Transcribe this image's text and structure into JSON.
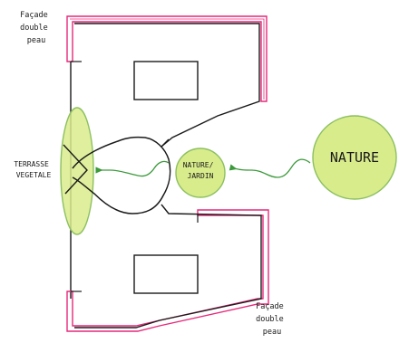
{
  "labels": {
    "facade_top": [
      "Façade",
      "double",
      "peau"
    ],
    "facade_bottom": [
      "Façade",
      "double",
      "peau"
    ],
    "terrasse": [
      "TERRASSE",
      "VEGETALE"
    ],
    "nature_jardin": [
      "NATURE/",
      "JARDIN"
    ],
    "nature": "NATURE"
  },
  "colors": {
    "ink": "#1a1a1a",
    "facade_highlight": "#e6297a",
    "green_fill": "#d9ec8c",
    "green_stroke": "#8cc060",
    "arrow": "#3c9a3c"
  }
}
